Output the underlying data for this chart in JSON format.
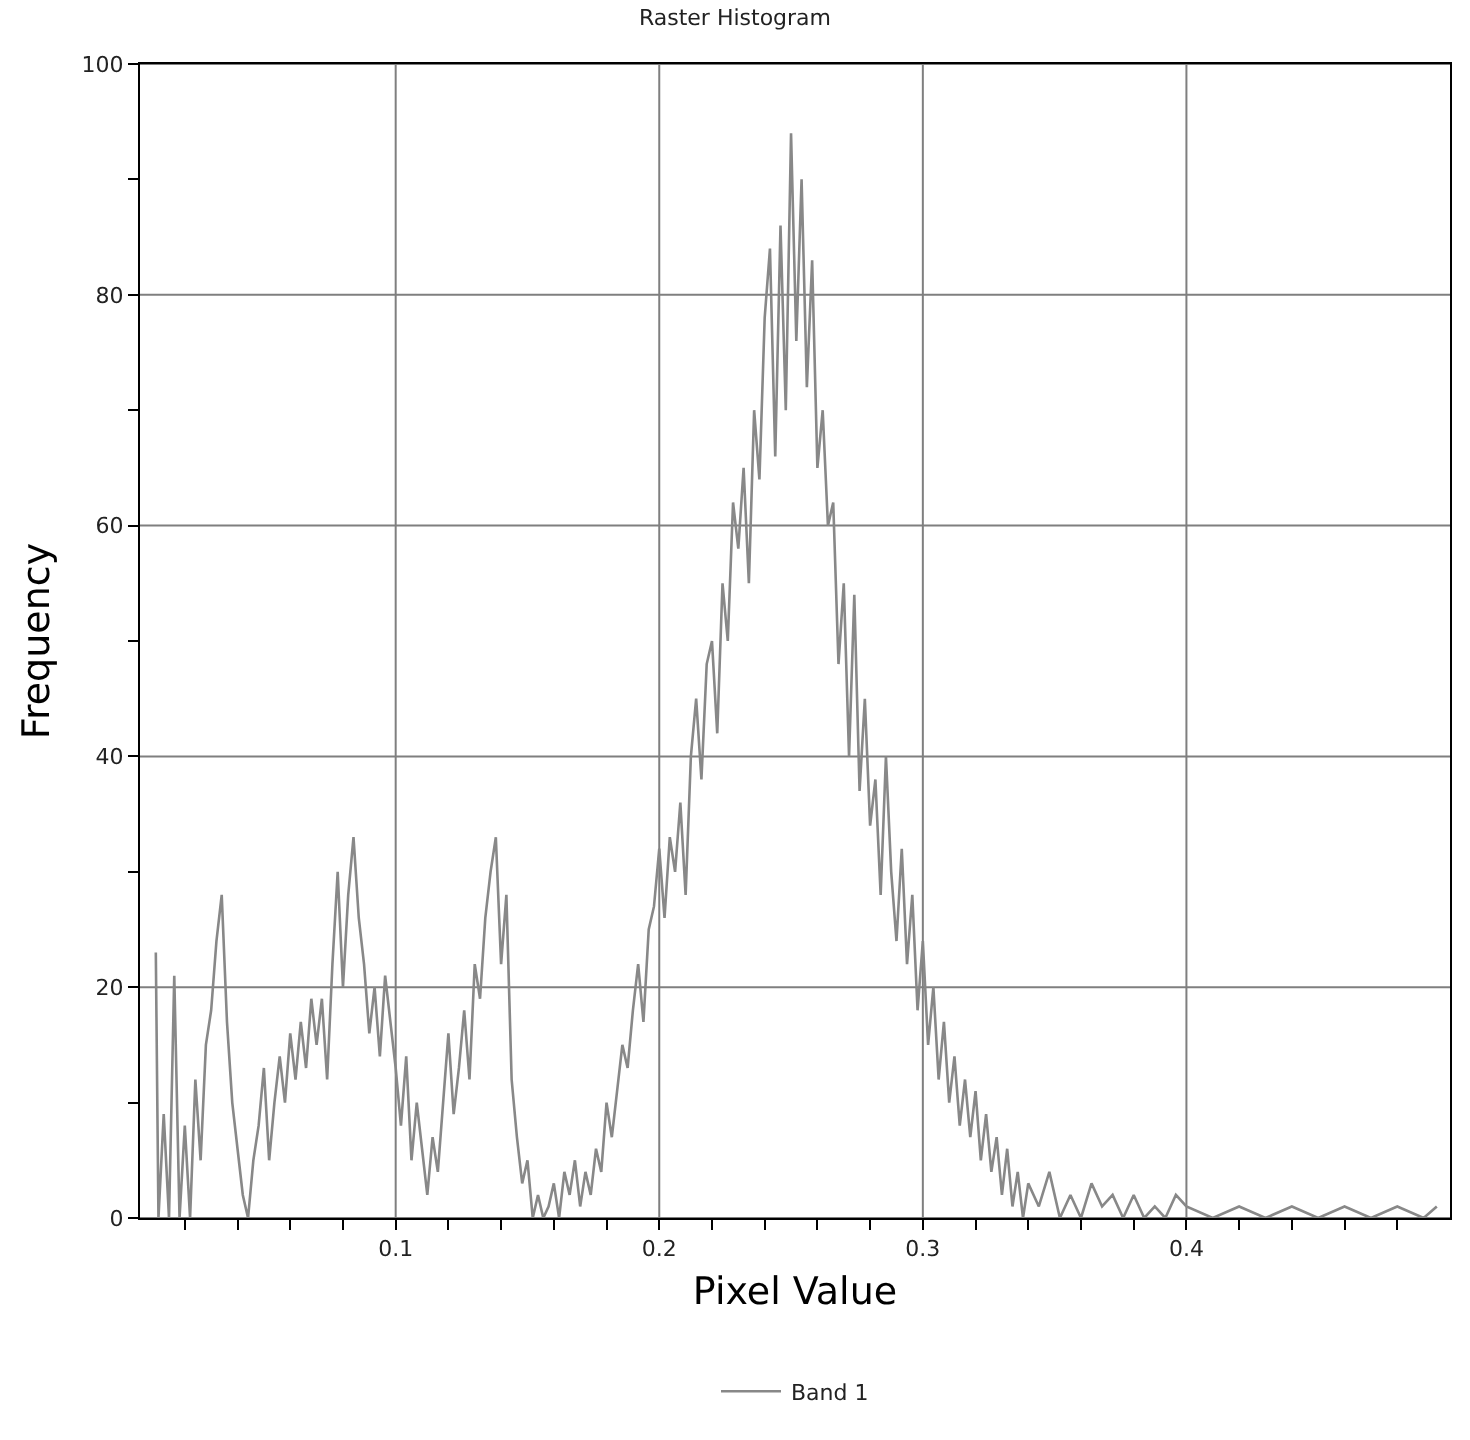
{
  "chart_data": {
    "type": "line",
    "title": "Raster Histogram",
    "xlabel": "Pixel Value",
    "ylabel": "Frequency",
    "x": [
      0.009,
      0.01,
      0.012,
      0.014,
      0.016,
      0.018,
      0.02,
      0.022,
      0.024,
      0.026,
      0.028,
      0.03,
      0.032,
      0.034,
      0.036,
      0.038,
      0.04,
      0.042,
      0.044,
      0.046,
      0.048,
      0.05,
      0.052,
      0.054,
      0.056,
      0.058,
      0.06,
      0.062,
      0.064,
      0.066,
      0.068,
      0.07,
      0.072,
      0.074,
      0.076,
      0.078,
      0.08,
      0.082,
      0.084,
      0.086,
      0.088,
      0.09,
      0.092,
      0.094,
      0.096,
      0.098,
      0.1,
      0.102,
      0.104,
      0.106,
      0.108,
      0.11,
      0.112,
      0.114,
      0.116,
      0.118,
      0.12,
      0.122,
      0.124,
      0.126,
      0.128,
      0.13,
      0.132,
      0.134,
      0.136,
      0.138,
      0.14,
      0.142,
      0.144,
      0.146,
      0.148,
      0.15,
      0.152,
      0.154,
      0.156,
      0.158,
      0.16,
      0.162,
      0.164,
      0.166,
      0.168,
      0.17,
      0.172,
      0.174,
      0.176,
      0.178,
      0.18,
      0.182,
      0.184,
      0.186,
      0.188,
      0.19,
      0.192,
      0.194,
      0.196,
      0.198,
      0.2,
      0.202,
      0.204,
      0.206,
      0.208,
      0.21,
      0.212,
      0.214,
      0.216,
      0.218,
      0.22,
      0.222,
      0.224,
      0.226,
      0.228,
      0.23,
      0.232,
      0.234,
      0.236,
      0.238,
      0.24,
      0.242,
      0.244,
      0.246,
      0.248,
      0.25,
      0.252,
      0.254,
      0.256,
      0.258,
      0.26,
      0.262,
      0.264,
      0.266,
      0.268,
      0.27,
      0.272,
      0.274,
      0.276,
      0.278,
      0.28,
      0.282,
      0.284,
      0.286,
      0.288,
      0.29,
      0.292,
      0.294,
      0.296,
      0.298,
      0.3,
      0.302,
      0.304,
      0.306,
      0.308,
      0.31,
      0.312,
      0.314,
      0.316,
      0.318,
      0.32,
      0.322,
      0.324,
      0.326,
      0.328,
      0.33,
      0.332,
      0.334,
      0.336,
      0.338,
      0.34,
      0.344,
      0.348,
      0.352,
      0.356,
      0.36,
      0.364,
      0.368,
      0.372,
      0.376,
      0.38,
      0.384,
      0.388,
      0.392,
      0.396,
      0.4,
      0.41,
      0.42,
      0.43,
      0.44,
      0.45,
      0.46,
      0.47,
      0.48,
      0.49,
      0.495
    ],
    "series": [
      {
        "name": "Band 1",
        "color": "#888888",
        "values": [
          23,
          0,
          9,
          0,
          21,
          0,
          8,
          0,
          12,
          5,
          15,
          18,
          24,
          28,
          17,
          10,
          6,
          2,
          0,
          5,
          8,
          13,
          5,
          10,
          14,
          10,
          16,
          12,
          17,
          13,
          19,
          15,
          19,
          12,
          22,
          30,
          20,
          28,
          33,
          26,
          22,
          16,
          20,
          14,
          21,
          17,
          13,
          8,
          14,
          5,
          10,
          6,
          2,
          7,
          4,
          10,
          16,
          9,
          13,
          18,
          12,
          22,
          19,
          26,
          30,
          33,
          22,
          28,
          12,
          7,
          3,
          5,
          0,
          2,
          0,
          1,
          3,
          0,
          4,
          2,
          5,
          1,
          4,
          2,
          6,
          4,
          10,
          7,
          11,
          15,
          13,
          18,
          22,
          17,
          25,
          27,
          32,
          26,
          33,
          30,
          36,
          28,
          40,
          45,
          38,
          48,
          50,
          42,
          55,
          50,
          62,
          58,
          65,
          55,
          70,
          64,
          78,
          84,
          66,
          86,
          70,
          94,
          76,
          90,
          72,
          83,
          65,
          70,
          60,
          62,
          48,
          55,
          40,
          54,
          37,
          45,
          34,
          38,
          28,
          40,
          30,
          24,
          32,
          22,
          28,
          18,
          24,
          15,
          20,
          12,
          17,
          10,
          14,
          8,
          12,
          7,
          11,
          5,
          9,
          4,
          7,
          2,
          6,
          1,
          4,
          0,
          3,
          1,
          4,
          0,
          2,
          0,
          3,
          1,
          2,
          0,
          2,
          0,
          1,
          0,
          2,
          1,
          0,
          1,
          0,
          1,
          0,
          1,
          0,
          1,
          0,
          1
        ]
      }
    ],
    "xlim": [
      0.003,
      0.5
    ],
    "xticks": [
      {
        "value": 0.02,
        "label": null
      },
      {
        "value": 0.04,
        "label": null
      },
      {
        "value": 0.06,
        "label": null
      },
      {
        "value": 0.08,
        "label": null
      },
      0.1,
      {
        "value": 0.12,
        "label": null
      },
      {
        "value": 0.14,
        "label": null
      },
      {
        "value": 0.16,
        "label": null
      },
      {
        "value": 0.18,
        "label": null
      },
      0.2,
      {
        "value": 0.22,
        "label": null
      },
      {
        "value": 0.24,
        "label": null
      },
      {
        "value": 0.26,
        "label": null
      },
      {
        "value": 0.28,
        "label": null
      },
      0.3,
      {
        "value": 0.32,
        "label": null
      },
      {
        "value": 0.34,
        "label": null
      },
      {
        "value": 0.36,
        "label": null
      },
      {
        "value": 0.38,
        "label": null
      },
      0.4,
      {
        "value": 0.42,
        "label": null
      },
      {
        "value": 0.44,
        "label": null
      },
      {
        "value": 0.46,
        "label": null
      },
      {
        "value": 0.48,
        "label": null
      }
    ],
    "ylim": [
      0,
      100
    ],
    "yticks": [
      0,
      {
        "value": 10,
        "label": null
      },
      20,
      {
        "value": 30,
        "label": null
      },
      40,
      {
        "value": 50,
        "label": null
      },
      60,
      {
        "value": 70,
        "label": null
      },
      80,
      {
        "value": 90,
        "label": null
      },
      100
    ],
    "grid": true,
    "legend": "bottom",
    "marker": "none",
    "line_style": "solid"
  }
}
